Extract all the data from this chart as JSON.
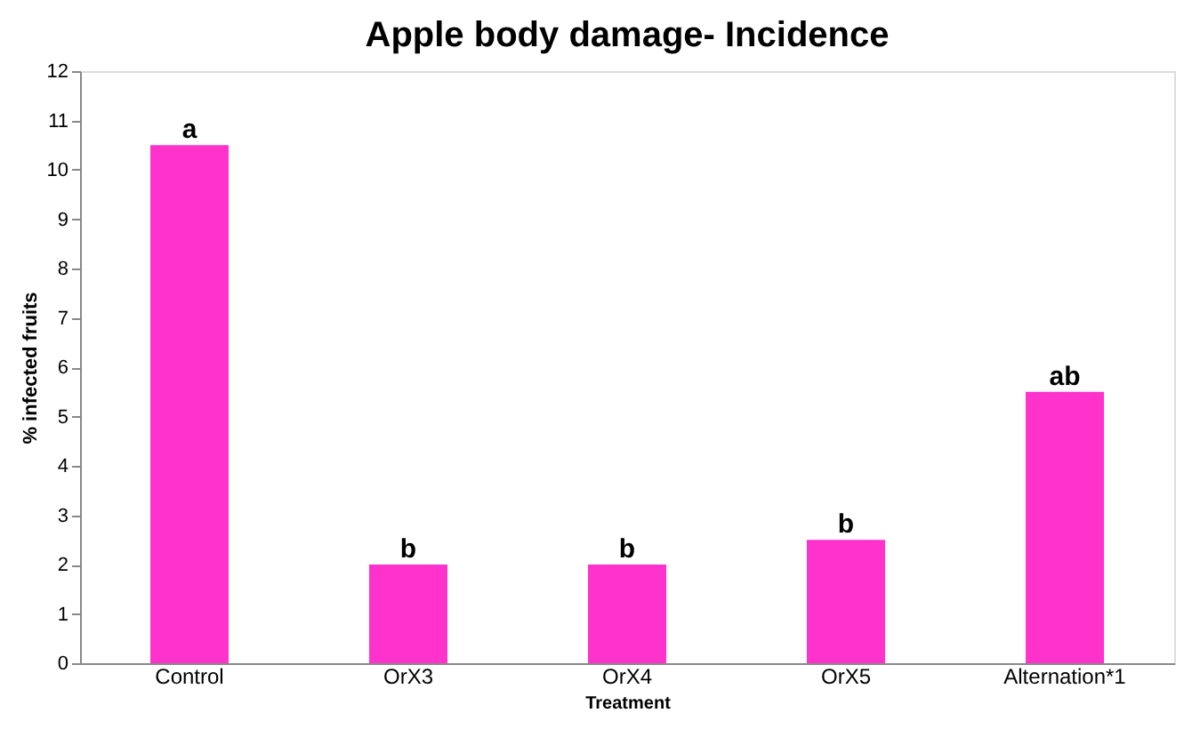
{
  "chart_data": {
    "type": "bar",
    "title": "Apple body damage- Incidence",
    "xlabel": "Treatment",
    "ylabel": "% infected fruits",
    "categories": [
      "Control",
      "OrX3",
      "OrX4",
      "OrX5",
      "Alternation*1"
    ],
    "values": [
      10.5,
      2,
      2,
      2.5,
      5.5
    ],
    "color": "#ff33cc",
    "ylim": [
      0,
      12
    ],
    "yticks": [
      0,
      1,
      2,
      3,
      4,
      5,
      6,
      7,
      8,
      9,
      10,
      11,
      12
    ],
    "grid": false,
    "annotations": [
      {
        "text": "a",
        "x": "Control",
        "y": 10.5
      },
      {
        "text": "b",
        "x": "OrX3",
        "y": 2
      },
      {
        "text": "b",
        "x": "OrX4",
        "y": 2
      },
      {
        "text": "b",
        "x": "OrX5",
        "y": 2.5
      },
      {
        "text": "ab",
        "x": "Alternation*1",
        "y": 5.5
      }
    ]
  }
}
